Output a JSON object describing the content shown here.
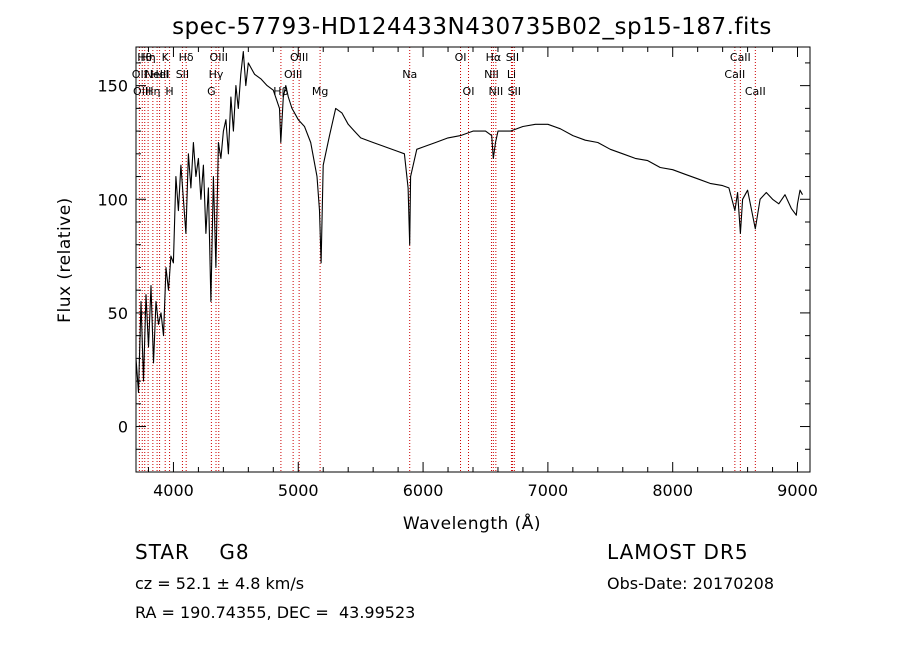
{
  "footer": {
    "object": "STAR    G8",
    "cz": "cz = 52.1 ± 4.8 km/s",
    "radec": "RA = 190.74355, DEC =  43.99523",
    "survey": "LAMOST DR5",
    "obs_date": "Obs-Date: 20170208"
  },
  "chart_data": {
    "type": "line",
    "title": "spec-57793-HD124433N430735B02_sp15-187.fits",
    "xlabel": "Wavelength (Å)",
    "ylabel": "Flux (relative)",
    "xlim": [
      3700,
      9100
    ],
    "ylim": [
      -20,
      167
    ],
    "xticks": [
      4000,
      5000,
      6000,
      7000,
      8000,
      9000
    ],
    "yticks": [
      0,
      50,
      100,
      150
    ],
    "grid": false,
    "line_color": "#000000",
    "marker_color": "#cc0000",
    "series": [
      {
        "x": [
          3700,
          3720,
          3740,
          3760,
          3780,
          3800,
          3820,
          3840,
          3860,
          3880,
          3900,
          3920,
          3940,
          3960,
          3980,
          4000,
          4020,
          4040,
          4060,
          4080,
          4100,
          4120,
          4140,
          4160,
          4180,
          4200,
          4220,
          4240,
          4260,
          4280,
          4300,
          4320,
          4340,
          4360,
          4380,
          4400,
          4420,
          4440,
          4460,
          4480,
          4500,
          4520,
          4540,
          4560,
          4580,
          4600,
          4620,
          4650,
          4700,
          4750,
          4800,
          4850,
          4860,
          4880,
          4900,
          4920,
          4950,
          5000,
          5050,
          5100,
          5150,
          5170,
          5183,
          5200,
          5250,
          5300,
          5350,
          5400,
          5450,
          5500,
          5600,
          5700,
          5800,
          5850,
          5880,
          5893,
          5900,
          5950,
          6000,
          6100,
          6200,
          6300,
          6400,
          6500,
          6550,
          6563,
          6580,
          6600,
          6700,
          6800,
          6900,
          7000,
          7100,
          7200,
          7300,
          7400,
          7500,
          7600,
          7700,
          7800,
          7900,
          8000,
          8100,
          8200,
          8300,
          8400,
          8450,
          8498,
          8520,
          8542,
          8560,
          8600,
          8662,
          8700,
          8750,
          8800,
          8850,
          8900,
          8950,
          8990,
          9000,
          9020,
          9040
        ],
        "y": [
          30,
          15,
          55,
          20,
          58,
          35,
          62,
          28,
          55,
          45,
          50,
          40,
          70,
          60,
          75,
          72,
          110,
          95,
          115,
          100,
          85,
          120,
          105,
          125,
          110,
          118,
          100,
          115,
          85,
          105,
          55,
          110,
          70,
          125,
          118,
          130,
          135,
          120,
          145,
          130,
          150,
          140,
          155,
          165,
          150,
          160,
          158,
          155,
          153,
          150,
          148,
          140,
          125,
          145,
          150,
          145,
          140,
          135,
          132,
          125,
          110,
          95,
          72,
          115,
          128,
          140,
          138,
          133,
          130,
          127,
          125,
          123,
          121,
          120,
          105,
          80,
          110,
          122,
          123,
          125,
          127,
          128,
          130,
          130,
          128,
          118,
          125,
          130,
          130,
          132,
          133,
          133,
          131,
          128,
          126,
          125,
          122,
          120,
          118,
          117,
          114,
          113,
          111,
          109,
          107,
          106,
          105,
          95,
          103,
          85,
          100,
          104,
          87,
          100,
          103,
          100,
          98,
          102,
          96,
          93,
          98,
          104,
          102
        ]
      }
    ],
    "line_markers": [
      {
        "wavelength": 3727,
        "label": "OII",
        "row": 1
      },
      {
        "wavelength": 3750,
        "label": "OIII",
        "row": 2
      },
      {
        "wavelength": 3770,
        "label": "Hθ",
        "row": 0
      },
      {
        "wavelength": 3797,
        "label": "Hη",
        "row": 0
      },
      {
        "wavelength": 3835,
        "label": "Hη",
        "row": 2
      },
      {
        "wavelength": 3869,
        "label": "NeIII",
        "row": 1
      },
      {
        "wavelength": 3889,
        "label": "HeI",
        "row": 1
      },
      {
        "wavelength": 3934,
        "label": "K",
        "row": 0
      },
      {
        "wavelength": 3969,
        "label": "H",
        "row": 2
      },
      {
        "wavelength": 4072,
        "label": "SII",
        "row": 1
      },
      {
        "wavelength": 4102,
        "label": "Hδ",
        "row": 0
      },
      {
        "wavelength": 4304,
        "label": "G",
        "row": 2
      },
      {
        "wavelength": 4341,
        "label": "Hγ",
        "row": 1
      },
      {
        "wavelength": 4363,
        "label": "OIII",
        "row": 0
      },
      {
        "wavelength": 4861,
        "label": "Hβ",
        "row": 2
      },
      {
        "wavelength": 4959,
        "label": "OIII",
        "row": 1
      },
      {
        "wavelength": 5007,
        "label": "OIII",
        "row": 0
      },
      {
        "wavelength": 5175,
        "label": "Mg",
        "row": 2
      },
      {
        "wavelength": 5893,
        "label": "Na",
        "row": 1
      },
      {
        "wavelength": 6300,
        "label": "OI",
        "row": 0
      },
      {
        "wavelength": 6364,
        "label": "OI",
        "row": 2
      },
      {
        "wavelength": 6548,
        "label": "NII",
        "row": 1
      },
      {
        "wavelength": 6563,
        "label": "Hα",
        "row": 0
      },
      {
        "wavelength": 6583,
        "label": "NII",
        "row": 2
      },
      {
        "wavelength": 6708,
        "label": "Li",
        "row": 1
      },
      {
        "wavelength": 6716,
        "label": "SII",
        "row": 0
      },
      {
        "wavelength": 6731,
        "label": "SII",
        "row": 2
      },
      {
        "wavelength": 8498,
        "label": "CaII",
        "row": 1
      },
      {
        "wavelength": 8542,
        "label": "CaII",
        "row": 0
      },
      {
        "wavelength": 8662,
        "label": "CaII",
        "row": 2
      }
    ]
  }
}
